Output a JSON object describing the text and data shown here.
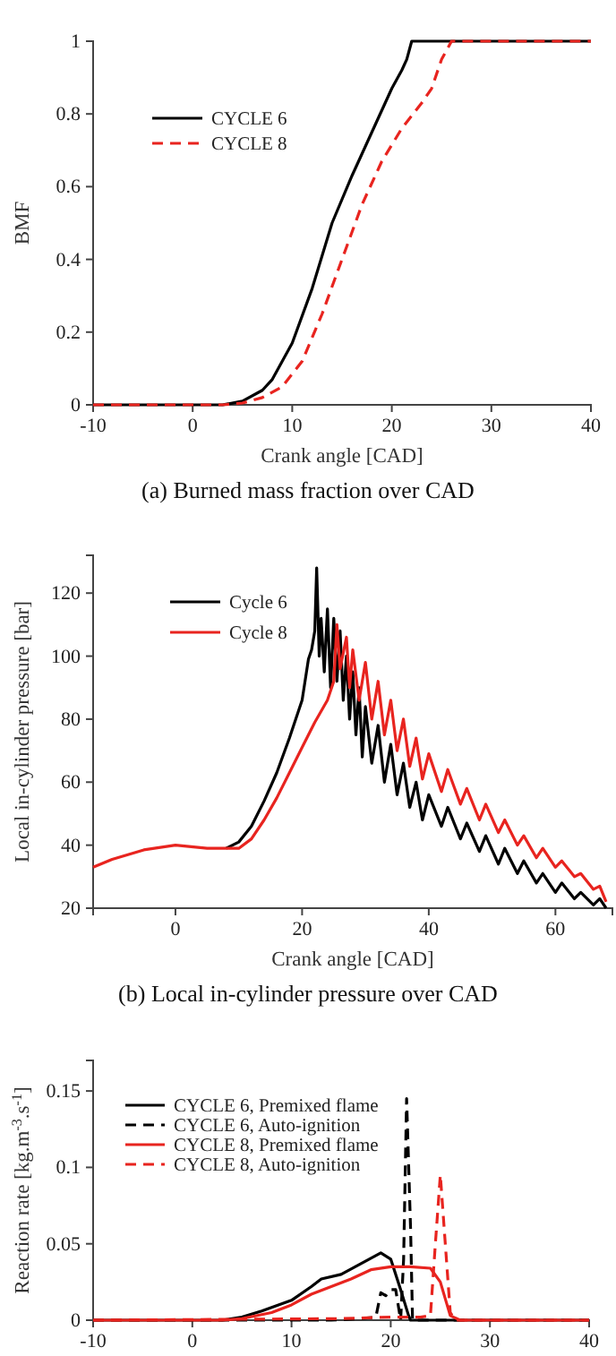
{
  "chart_data": [
    {
      "type": "line",
      "xlabel": "Crank angle [CAD]",
      "ylabel": "BMF",
      "annotations": [
        "(a) Burned mass fraction over CAD"
      ],
      "xlim": [
        -10,
        40
      ],
      "ylim": [
        0,
        1
      ],
      "xticks": [
        -10,
        0,
        10,
        20,
        30,
        40
      ],
      "yticks": [
        0,
        0.2,
        0.4,
        0.6,
        0.8,
        1
      ],
      "legend": "top left",
      "grid": false,
      "series": [
        {
          "name": "CYCLE 6",
          "color": "#000000",
          "line_style": "solid",
          "x": [
            -10,
            0,
            3,
            5,
            7,
            8,
            10,
            12,
            14,
            16,
            18,
            20,
            21,
            21.5,
            22,
            30,
            40
          ],
          "values": [
            0,
            0,
            0,
            0.01,
            0.04,
            0.07,
            0.17,
            0.32,
            0.5,
            0.63,
            0.75,
            0.87,
            0.92,
            0.95,
            1,
            1,
            1
          ]
        },
        {
          "name": "CYCLE 8",
          "color": "#e8241f",
          "line_style": "dashed",
          "x": [
            -10,
            0,
            3,
            5,
            7,
            9,
            11,
            13,
            15,
            17,
            19,
            21,
            23,
            24,
            25,
            26,
            30,
            40
          ],
          "values": [
            0,
            0,
            0,
            0.005,
            0.02,
            0.05,
            0.12,
            0.25,
            0.4,
            0.55,
            0.67,
            0.76,
            0.83,
            0.87,
            0.95,
            1,
            1,
            1
          ]
        }
      ]
    },
    {
      "type": "line",
      "xlabel": "Crank angle [CAD]",
      "ylabel": "Local in-cylinder pressure [bar]",
      "annotations": [
        "(b) Local in-cylinder pressure over CAD"
      ],
      "xlim": [
        -13,
        69
      ],
      "ylim": [
        20,
        132
      ],
      "xticks": [
        0,
        20,
        40,
        60
      ],
      "yticks": [
        20,
        40,
        60,
        80,
        100,
        120
      ],
      "legend": "top left",
      "grid": false,
      "series": [
        {
          "name": "Cycle 6",
          "color": "#000000",
          "line_style": "solid",
          "x": [
            8,
            10,
            12,
            14,
            16,
            18,
            20,
            21,
            21.5,
            22,
            22.3,
            22.7,
            23,
            23.5,
            24,
            24.5,
            25,
            25.5,
            26,
            26.5,
            27,
            27.5,
            28,
            28.5,
            29,
            29.5,
            30,
            31,
            32,
            33,
            34,
            35,
            36,
            37,
            38,
            39,
            40,
            42,
            43,
            45,
            46,
            48,
            49,
            51,
            52,
            54,
            55,
            57,
            58,
            60,
            61,
            63,
            64,
            66,
            67,
            68
          ],
          "values": [
            39,
            41,
            46,
            54,
            63,
            74,
            86,
            99,
            102,
            108,
            128,
            100,
            112,
            95,
            115,
            90,
            112,
            92,
            108,
            86,
            100,
            80,
            95,
            75,
            90,
            68,
            84,
            66,
            78,
            60,
            72,
            56,
            66,
            52,
            60,
            48,
            56,
            46,
            52,
            42,
            47,
            38,
            43,
            34,
            39,
            31,
            35,
            28,
            31,
            25,
            28,
            23,
            25,
            21,
            23,
            20
          ]
        },
        {
          "name": "Cycle 8",
          "color": "#e8241f",
          "line_style": "solid",
          "x": [
            -13,
            -10,
            -5,
            0,
            5,
            8,
            10,
            12,
            14,
            16,
            18,
            20,
            22,
            24,
            25,
            25.5,
            26,
            27,
            27.5,
            28,
            29,
            30,
            31,
            32,
            33,
            34,
            35,
            36,
            37,
            38,
            39,
            40,
            42,
            43,
            45,
            46,
            48,
            49,
            51,
            52,
            54,
            55,
            57,
            58,
            60,
            61,
            63,
            64,
            66,
            67,
            68
          ],
          "values": [
            33,
            35.5,
            38.5,
            40,
            39,
            39,
            39,
            42,
            48,
            55,
            63,
            71,
            79,
            86,
            92,
            110,
            96,
            106,
            90,
            102,
            86,
            98,
            80,
            92,
            75,
            86,
            70,
            80,
            65,
            74,
            61,
            69,
            57,
            64,
            53,
            58,
            48,
            53,
            44,
            48,
            40,
            43,
            36,
            39,
            33,
            35,
            30,
            31,
            26,
            27,
            22
          ]
        }
      ]
    },
    {
      "type": "line",
      "ylabel": "Reaction rate [kg.m$^{-3}$.s$^{-1}$]",
      "xlim": [
        -10,
        40
      ],
      "ylim": [
        0,
        0.17
      ],
      "xticks": [
        -10,
        0,
        10,
        20,
        30,
        40
      ],
      "yticks": [
        0,
        0.05,
        0.1,
        0.15
      ],
      "legend": "top left",
      "grid": false,
      "series": [
        {
          "name": "CYCLE 6, Premixed flame",
          "color": "#000000",
          "line_style": "solid",
          "x": [
            -10,
            3,
            5,
            7,
            10,
            12,
            13,
            15,
            17,
            19,
            20,
            21,
            21.8,
            22,
            40
          ],
          "values": [
            0,
            0,
            0.002,
            0.006,
            0.013,
            0.022,
            0.027,
            0.03,
            0.037,
            0.044,
            0.04,
            0.02,
            0.003,
            0,
            0
          ]
        },
        {
          "name": "CYCLE 6, Auto-ignition",
          "color": "#000000",
          "line_style": "dashed",
          "x": [
            -10,
            14,
            17,
            18.5,
            19,
            19.5,
            20,
            20.5,
            21,
            21.3,
            21.6,
            22,
            22.2,
            40
          ],
          "values": [
            0,
            0,
            0.001,
            0.002,
            0.018,
            0.016,
            0.02,
            0.02,
            0,
            0.04,
            0.145,
            0.06,
            0,
            0
          ]
        },
        {
          "name": "CYCLE 8, Premixed flame",
          "color": "#e8241f",
          "line_style": "solid",
          "x": [
            -10,
            3,
            5,
            8,
            10,
            12,
            14,
            16,
            18,
            20,
            22,
            24,
            25,
            26,
            27,
            40
          ],
          "values": [
            0,
            0,
            0.001,
            0.005,
            0.01,
            0.017,
            0.022,
            0.027,
            0.033,
            0.035,
            0.035,
            0.034,
            0.025,
            0.003,
            0,
            0
          ]
        },
        {
          "name": "CYCLE 8, Auto-ignition",
          "color": "#e8241f",
          "line_style": "dashed",
          "x": [
            -10,
            15,
            20,
            23,
            24,
            24.5,
            25,
            25.5,
            26,
            26.5,
            40
          ],
          "values": [
            0,
            0.001,
            0.002,
            0.002,
            0.003,
            0.05,
            0.095,
            0.05,
            0.005,
            0,
            0
          ]
        }
      ]
    }
  ]
}
